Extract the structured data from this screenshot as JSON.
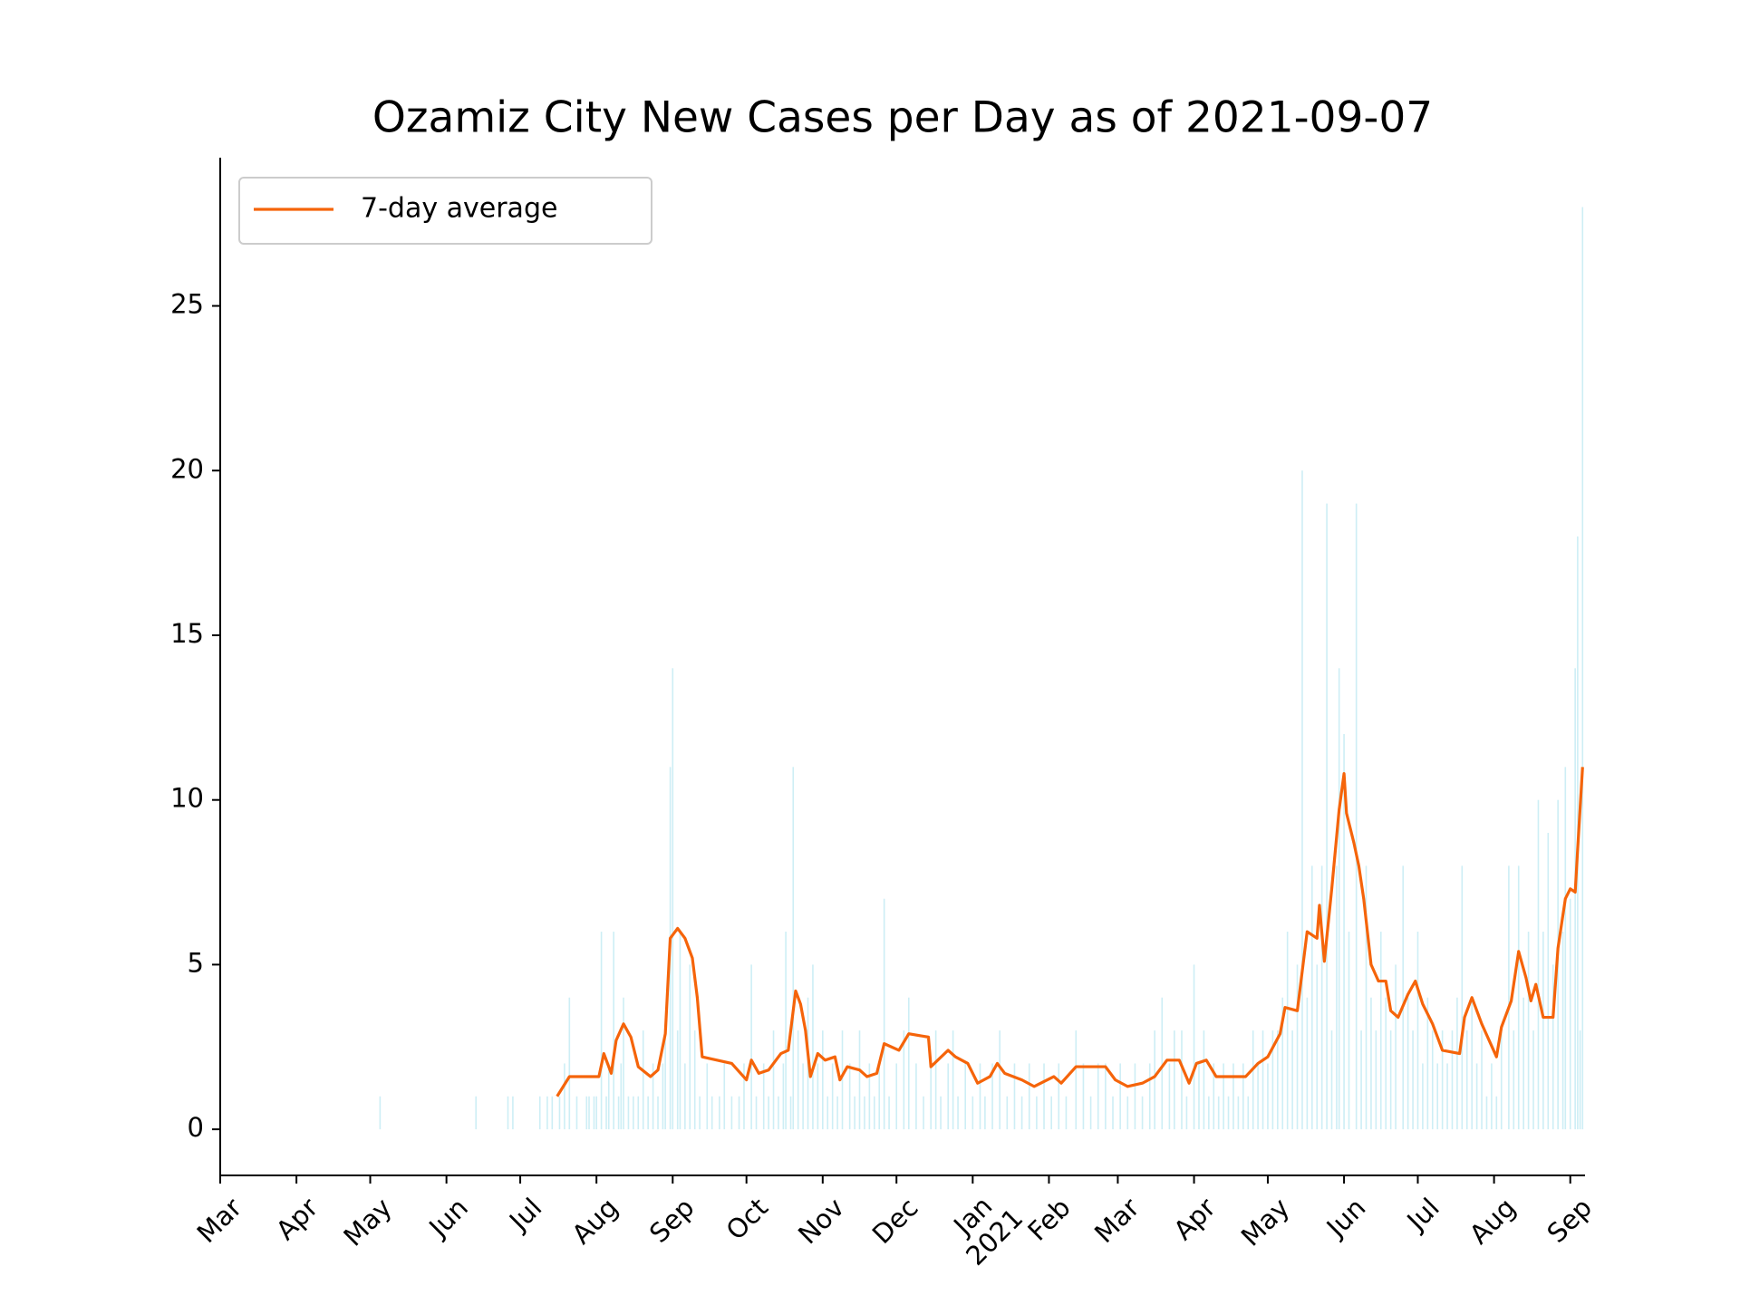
{
  "chart_data": {
    "type": "line",
    "title": "Ozamiz City New Cases per Day as of 2021-09-07",
    "xlim": [
      0,
      555
    ],
    "ylim": [
      -1.4,
      29.5
    ],
    "yticks": [
      0,
      5,
      10,
      15,
      20,
      25
    ],
    "xticks": [
      {
        "value": 0,
        "label": "Mar"
      },
      {
        "value": 31,
        "label": "Apr"
      },
      {
        "value": 61,
        "label": "May"
      },
      {
        "value": 92,
        "label": "Jun"
      },
      {
        "value": 122,
        "label": "Jul"
      },
      {
        "value": 153,
        "label": "Aug"
      },
      {
        "value": 184,
        "label": "Sep"
      },
      {
        "value": 214,
        "label": "Oct"
      },
      {
        "value": 245,
        "label": "Nov"
      },
      {
        "value": 275,
        "label": "Dec"
      },
      {
        "value": 306,
        "label": "Jan\n2021"
      },
      {
        "value": 337,
        "label": "Feb"
      },
      {
        "value": 365,
        "label": "Mar"
      },
      {
        "value": 396,
        "label": "Apr"
      },
      {
        "value": 426,
        "label": "May"
      },
      {
        "value": 457,
        "label": "Jun"
      },
      {
        "value": 487,
        "label": "Jul"
      },
      {
        "value": 518,
        "label": "Aug"
      },
      {
        "value": 549,
        "label": "Sep"
      }
    ],
    "legend": "upper left",
    "series": [
      {
        "name": "7-day average",
        "color": "#f5640a",
        "x": [
          137,
          142,
          154,
          156,
          159,
          161,
          164,
          167,
          170,
          175,
          178,
          181,
          183,
          186,
          189,
          192,
          194,
          196,
          202,
          208,
          214,
          216,
          219,
          223,
          228,
          231,
          234,
          236,
          238,
          240,
          243,
          246,
          250,
          252,
          255,
          260,
          263,
          267,
          270,
          276,
          280,
          288,
          289,
          296,
          299,
          304,
          308,
          313,
          316,
          319,
          326,
          331,
          339,
          342,
          348,
          360,
          364,
          369,
          375,
          380,
          385,
          390,
          394,
          397,
          401,
          405,
          410,
          417,
          422,
          426,
          431,
          433,
          438,
          442,
          446,
          447,
          449,
          452,
          455,
          457,
          458,
          461,
          463,
          465,
          468,
          471,
          474,
          476,
          479,
          483,
          486,
          489,
          493,
          497,
          504,
          506,
          509,
          513,
          519,
          521,
          525,
          528,
          531,
          533,
          535,
          538,
          542,
          544,
          547,
          549,
          551,
          552,
          554
        ],
        "values": [
          1.0,
          1.6,
          1.6,
          2.3,
          1.7,
          2.7,
          3.2,
          2.8,
          1.9,
          1.6,
          1.8,
          2.9,
          5.8,
          6.1,
          5.8,
          5.2,
          4.0,
          2.2,
          2.1,
          2.0,
          1.5,
          2.1,
          1.7,
          1.8,
          2.3,
          2.4,
          4.2,
          3.8,
          3.0,
          1.6,
          2.3,
          2.1,
          2.2,
          1.5,
          1.9,
          1.8,
          1.6,
          1.7,
          2.6,
          2.4,
          2.9,
          2.8,
          1.9,
          2.4,
          2.2,
          2.0,
          1.4,
          1.6,
          2.0,
          1.7,
          1.5,
          1.3,
          1.6,
          1.4,
          1.9,
          1.9,
          1.5,
          1.3,
          1.4,
          1.6,
          2.1,
          2.1,
          1.4,
          2.0,
          2.1,
          1.6,
          1.6,
          1.6,
          2.0,
          2.2,
          2.9,
          3.7,
          3.6,
          6.0,
          5.8,
          6.8,
          5.1,
          7.3,
          9.7,
          10.8,
          9.6,
          8.7,
          8.0,
          7.0,
          5.0,
          4.5,
          4.5,
          3.6,
          3.4,
          4.1,
          4.5,
          3.8,
          3.2,
          2.4,
          2.3,
          3.4,
          4.0,
          3.2,
          2.2,
          3.1,
          3.9,
          5.4,
          4.6,
          3.9,
          4.4,
          3.4,
          3.4,
          5.5,
          7.0,
          7.3,
          7.2,
          8.5,
          11.0
        ]
      }
    ],
    "bars": {
      "color": "#cdeef5",
      "x": [
        65,
        104,
        117,
        119,
        130,
        133,
        135,
        138,
        140,
        142,
        145,
        149,
        150,
        152,
        153,
        155,
        157,
        158,
        160,
        162,
        163,
        164,
        166,
        168,
        170,
        172,
        174,
        176,
        178,
        180,
        181,
        183,
        184,
        186,
        187,
        189,
        191,
        193,
        195,
        198,
        200,
        203,
        205,
        208,
        211,
        213,
        216,
        218,
        221,
        223,
        225,
        227,
        229,
        230,
        232,
        233,
        235,
        237,
        239,
        241,
        243,
        245,
        247,
        249,
        251,
        253,
        256,
        258,
        260,
        262,
        264,
        266,
        268,
        270,
        272,
        275,
        278,
        280,
        283,
        286,
        289,
        291,
        293,
        296,
        298,
        300,
        303,
        306,
        309,
        311,
        314,
        317,
        320,
        323,
        326,
        329,
        332,
        335,
        338,
        341,
        344,
        348,
        351,
        354,
        357,
        360,
        363,
        366,
        369,
        372,
        375,
        378,
        380,
        383,
        386,
        388,
        391,
        393,
        396,
        398,
        400,
        402,
        404,
        406,
        408,
        410,
        412,
        414,
        416,
        418,
        420,
        422,
        424,
        426,
        428,
        430,
        432,
        434,
        436,
        438,
        440,
        442,
        444,
        446,
        448,
        450,
        452,
        454,
        455,
        457,
        459,
        462,
        464,
        466,
        468,
        470,
        472,
        474,
        476,
        478,
        481,
        483,
        485,
        487,
        489,
        491,
        493,
        495,
        497,
        499,
        501,
        503,
        505,
        507,
        509,
        511,
        513,
        515,
        517,
        519,
        521,
        524,
        526,
        528,
        530,
        532,
        534,
        536,
        538,
        540,
        542,
        544,
        546,
        547,
        549,
        551,
        552,
        553,
        554
      ],
      "values": [
        1,
        1,
        1,
        1,
        1,
        1,
        1,
        1,
        2,
        4,
        1,
        1,
        1,
        1,
        1,
        6,
        1,
        2,
        6,
        1,
        2,
        4,
        1,
        1,
        1,
        3,
        1,
        2,
        1,
        2,
        3,
        11,
        14,
        3,
        6,
        2,
        5,
        3,
        1,
        2,
        1,
        1,
        2,
        1,
        1,
        2,
        5,
        1,
        2,
        1,
        3,
        1,
        2,
        6,
        1,
        11,
        3,
        2,
        4,
        5,
        2,
        3,
        1,
        2,
        1,
        3,
        2,
        1,
        3,
        1,
        2,
        1,
        2,
        7,
        1,
        2,
        3,
        4,
        2,
        1,
        2,
        3,
        1,
        2,
        3,
        1,
        2,
        1,
        2,
        1,
        2,
        3,
        1,
        2,
        1,
        2,
        1,
        2,
        1,
        2,
        1,
        3,
        2,
        1,
        2,
        2,
        1,
        2,
        1,
        2,
        1,
        2,
        3,
        4,
        2,
        3,
        3,
        1,
        5,
        2,
        3,
        1,
        2,
        1,
        2,
        1,
        2,
        1,
        2,
        1,
        3,
        2,
        3,
        2,
        3,
        3,
        4,
        6,
        3,
        5,
        20,
        4,
        8,
        5,
        8,
        19,
        3,
        8,
        14,
        12,
        6,
        19,
        3,
        8,
        4,
        3,
        6,
        4,
        3,
        5,
        8,
        4,
        3,
        6,
        2,
        4,
        3,
        2,
        3,
        2,
        3,
        4,
        8,
        3,
        4,
        2,
        3,
        1,
        2,
        1,
        3,
        8,
        3,
        8,
        4,
        6,
        3,
        10,
        6,
        9,
        5,
        10,
        6,
        11,
        7,
        14,
        18,
        3,
        28
      ]
    }
  }
}
